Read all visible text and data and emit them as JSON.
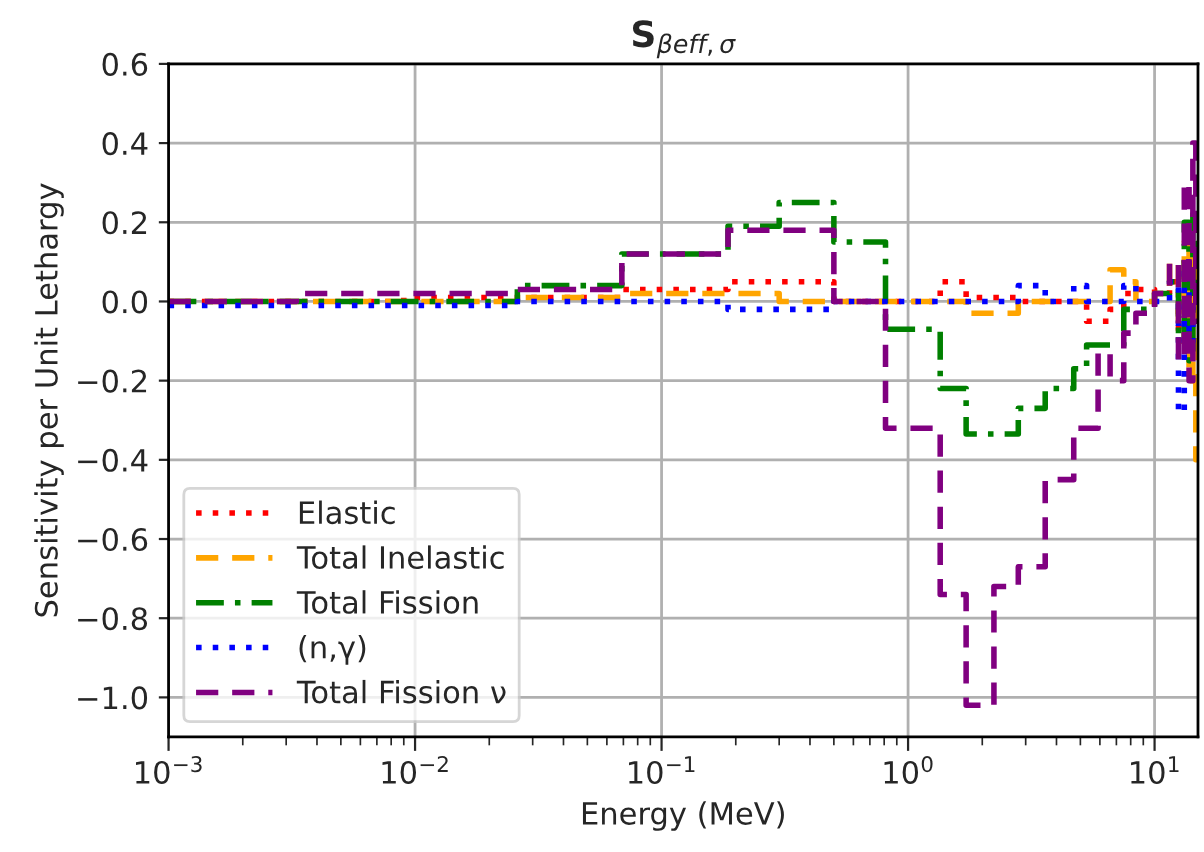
{
  "chart_data": {
    "type": "step",
    "title": "S$_{βeff,σ}$",
    "xlabel": "Energy (MeV)",
    "ylabel": "Sensitivity per Unit Lethargy",
    "log": "x",
    "grid": true,
    "legend": "bottom left",
    "xlim": [
      0.001,
      15
    ],
    "xticks": [
      {
        "value": 0.001,
        "label": "10$^{−3}$"
      },
      {
        "value": 0.01,
        "label": "10$^{−2}$"
      },
      {
        "value": 0.1,
        "label": "10$^{−1}$"
      },
      {
        "value": 1,
        "label": "10$^{0}$"
      },
      {
        "value": 10,
        "label": "10$^{1}$"
      }
    ],
    "ylim": [
      -1.1,
      0.6
    ],
    "yticks": [
      {
        "value": -1.0,
        "label": "−1.0"
      },
      {
        "value": -0.8,
        "label": "−0.8"
      },
      {
        "value": -0.6,
        "label": "−0.6"
      },
      {
        "value": -0.4,
        "label": "−0.4"
      },
      {
        "value": -0.2,
        "label": "−0.2"
      },
      {
        "value": 0.0,
        "label": "0.0"
      },
      {
        "value": 0.2,
        "label": "0.2"
      },
      {
        "value": 0.4,
        "label": "0.4"
      },
      {
        "value": 0.6,
        "label": "0.6"
      }
    ],
    "x": [
      0.001,
      0.0033,
      0.009,
      0.026,
      0.069,
      0.186,
      0.3,
      0.5,
      0.81,
      1.35,
      1.72,
      2.23,
      2.8,
      3.6,
      4.7,
      5.3,
      5.9,
      6.6,
      7.5,
      8.4,
      10,
      11.5,
      12.5,
      13.2,
      13.8,
      14.3,
      14.7,
      15
    ],
    "series": [
      {
        "name": "Elastic",
        "color": "#ff0000",
        "line_style": "dotted",
        "values": [
          0,
          0,
          0.01,
          0.01,
          0.03,
          0.05,
          0.05,
          0.0,
          0.0,
          0.05,
          0.01,
          0.01,
          0.0,
          0.0,
          0.0,
          -0.05,
          -0.05,
          -0.02,
          0.02,
          0.03,
          0.02,
          0.05,
          -0.1,
          0.1,
          -0.05,
          0.05,
          0.0,
          0.0
        ]
      },
      {
        "name": "Total Inelastic",
        "color": "#ffa500",
        "line_style": "dashed",
        "values": [
          0,
          0,
          0,
          0.01,
          0.02,
          0.02,
          0.0,
          0.0,
          0.0,
          0.0,
          -0.03,
          -0.03,
          0.0,
          0.0,
          0.0,
          0.0,
          0.0,
          0.08,
          0.05,
          0.0,
          0.02,
          0.1,
          -0.1,
          0.15,
          -0.2,
          0.12,
          -0.4,
          -0.4
        ]
      },
      {
        "name": "Total Fission",
        "color": "#008000",
        "line_style": "dashdot",
        "values": [
          0.0,
          0.0,
          0.0,
          0.04,
          0.12,
          0.19,
          0.25,
          0.15,
          -0.07,
          -0.22,
          -0.335,
          -0.335,
          -0.27,
          -0.22,
          -0.17,
          -0.11,
          -0.11,
          -0.11,
          -0.02,
          -0.02,
          0.02,
          0.05,
          -0.1,
          0.2,
          -0.15,
          0.22,
          0.0,
          0.0
        ]
      },
      {
        "name": "(n,γ)",
        "color": "#0000ff",
        "line_style": "dotted",
        "values": [
          -0.01,
          -0.01,
          -0.01,
          0.0,
          0.0,
          -0.02,
          -0.02,
          0.0,
          0.0,
          0.0,
          0.0,
          0.0,
          0.04,
          0.0,
          0.04,
          0.0,
          0.0,
          0.0,
          0.04,
          0.0,
          0.0,
          0.05,
          -0.28,
          0.1,
          -0.1,
          0.0,
          0.0,
          0.0
        ]
      },
      {
        "name": "Total Fission ν",
        "color": "#800080",
        "line_style": "dashed",
        "values": [
          0.0,
          0.02,
          0.02,
          0.03,
          0.12,
          0.18,
          0.18,
          0.0,
          -0.32,
          -0.74,
          -1.02,
          -0.72,
          -0.67,
          -0.45,
          -0.32,
          -0.32,
          -0.13,
          -0.2,
          -0.08,
          -0.03,
          0.02,
          0.1,
          -0.15,
          0.3,
          -0.2,
          0.4,
          -0.05,
          -0.05
        ]
      }
    ]
  }
}
